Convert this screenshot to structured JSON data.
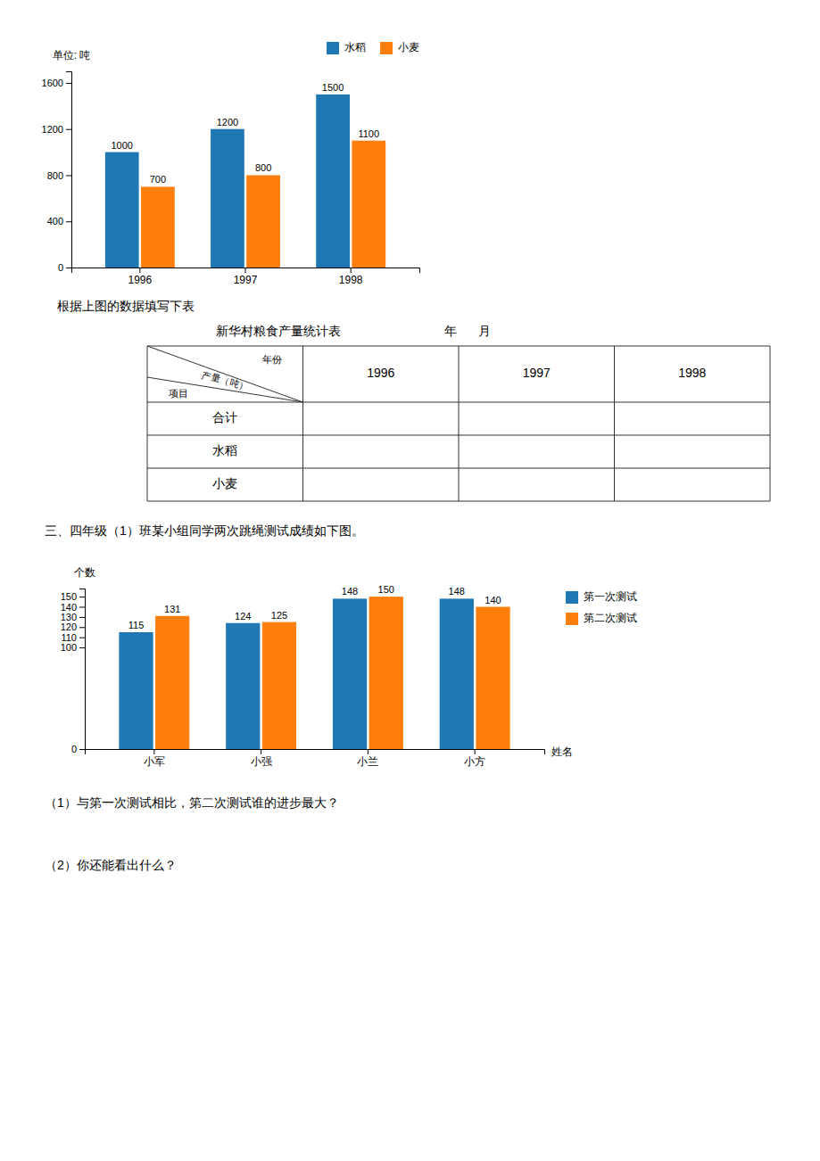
{
  "chart_data": [
    {
      "type": "bar",
      "ylabel": "单位: 吨",
      "categories": [
        "1996",
        "1997",
        "1998"
      ],
      "series": [
        {
          "name": "水稻",
          "values": [
            1000,
            1200,
            1500
          ]
        },
        {
          "name": "小麦",
          "values": [
            700,
            800,
            1100
          ]
        }
      ],
      "ylim": [
        0,
        1700
      ],
      "yticks": [
        0,
        400,
        800,
        1200,
        1600
      ],
      "data_labels": true,
      "legend": "top",
      "grid": false,
      "annotations": [
        "根据上图的数据填写下表",
        "新华村粮食产量统计表",
        "年      月",
        "1996",
        "1997",
        "1998",
        "合计",
        "水稻",
        "小麦",
        "年份",
        "产量（吨）",
        "项目"
      ]
    },
    {
      "type": "bar",
      "ylabel": "个数",
      "xlabel": "姓名",
      "categories": [
        "小军",
        "小强",
        "小兰",
        "小方"
      ],
      "series": [
        {
          "name": "第一次测试",
          "values": [
            115,
            124,
            148,
            148
          ]
        },
        {
          "name": "第二次测试",
          "values": [
            131,
            125,
            150,
            140
          ]
        }
      ],
      "ylim": [
        0,
        158
      ],
      "yticks": [
        0,
        100,
        110,
        120,
        130,
        140,
        150
      ],
      "data_labels": true,
      "legend": "right",
      "grid": false,
      "annotations": [
        "三、四年级（1）班某小组同学两次跳绳测试成绩如下图。",
        "（1）与第一次测试相比，第二次测试谁的进步最大？",
        "（2）你还能看出什么？"
      ]
    }
  ]
}
